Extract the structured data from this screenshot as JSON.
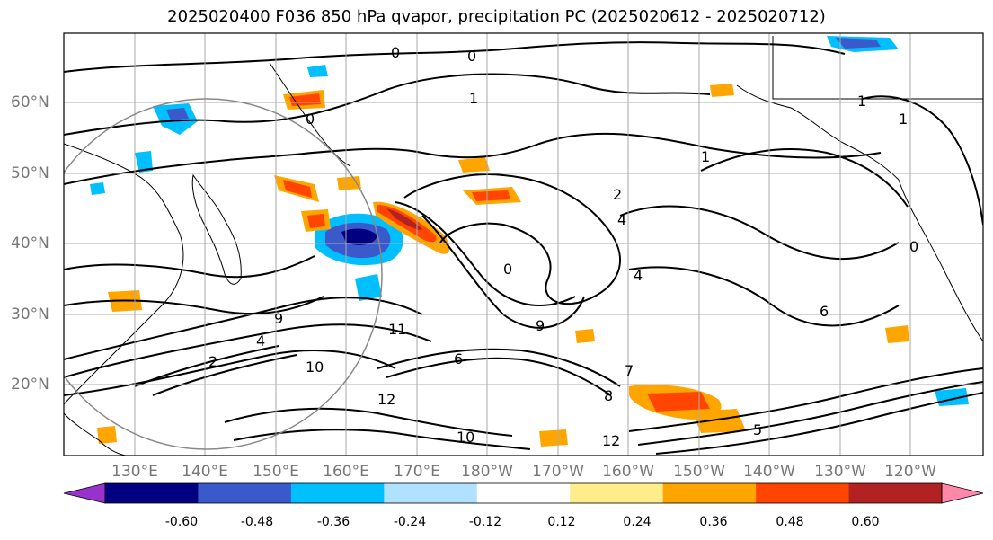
{
  "title": "2025020400 F036 850 hPa qvapor, precipitation PC (2025020612 - 2025020712)",
  "lat_labels": [
    "60°N",
    "50°N",
    "40°N",
    "30°N",
    "20°N"
  ],
  "lon_labels": [
    "130°E",
    "140°E",
    "150°E",
    "160°E",
    "170°E",
    "180°W",
    "170°W",
    "160°W",
    "150°W",
    "140°W",
    "130°W",
    "120°W"
  ],
  "colorbar": {
    "colors": [
      "#9932cc",
      "#000080",
      "#3a5acc",
      "#00bfff",
      "#b0e2ff",
      "#ffffff",
      "#ffec8b",
      "#ffa500",
      "#ff4500",
      "#b22222",
      "#ff88aa"
    ],
    "tick_labels": [
      "-0.60",
      "-0.48",
      "-0.36",
      "-0.24",
      "-0.12",
      "0.12",
      "0.24",
      "0.36",
      "0.48",
      "0.60"
    ]
  },
  "contour_labels": [
    "0",
    "0",
    "0",
    "0",
    "1",
    "1",
    "1",
    "2",
    "4",
    "4",
    "6",
    "9",
    "11",
    "10",
    "12",
    "10",
    "12",
    "4",
    "6",
    "7",
    "2",
    "0",
    "1",
    "9",
    "8",
    "5"
  ]
}
